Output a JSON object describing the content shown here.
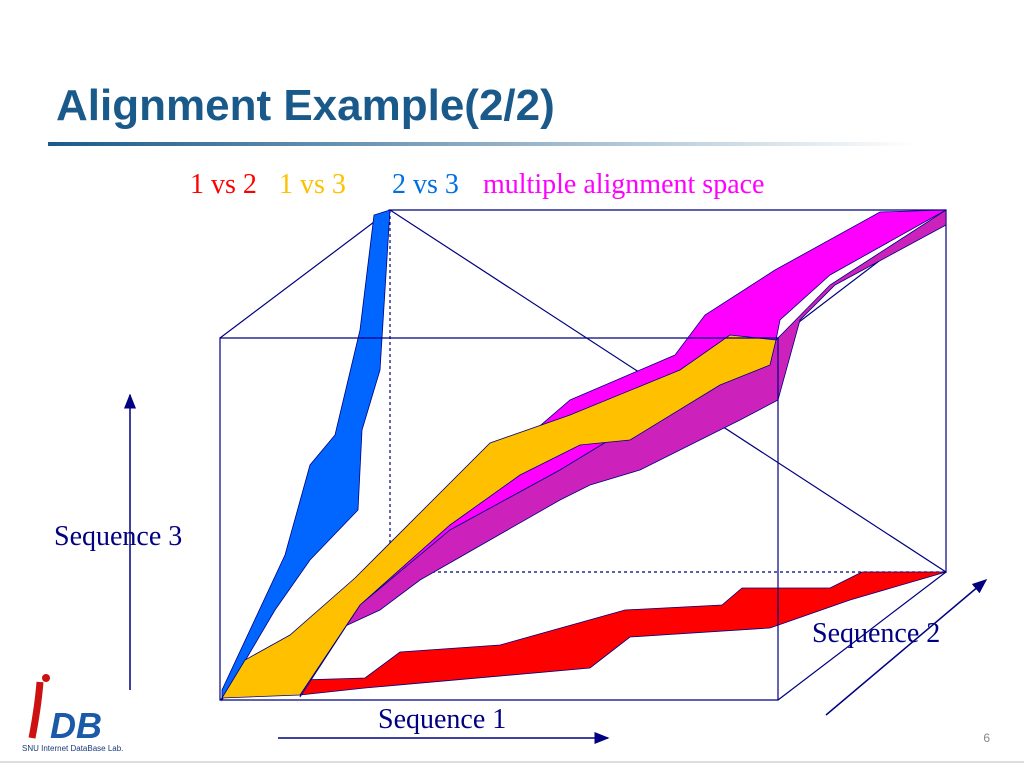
{
  "title": "Alignment Example(2/2)",
  "legend": {
    "items": [
      "1 vs 2",
      "1 vs 3",
      "2 vs 3",
      "multiple alignment space"
    ]
  },
  "labels": {
    "sequence_3": "Sequence 3",
    "sequence_2": "Sequence 2",
    "sequence_1": "Sequence 1"
  },
  "logo": {
    "mark": "DB",
    "name": "SNU Internet DataBase Lab."
  },
  "page_number": "6"
}
